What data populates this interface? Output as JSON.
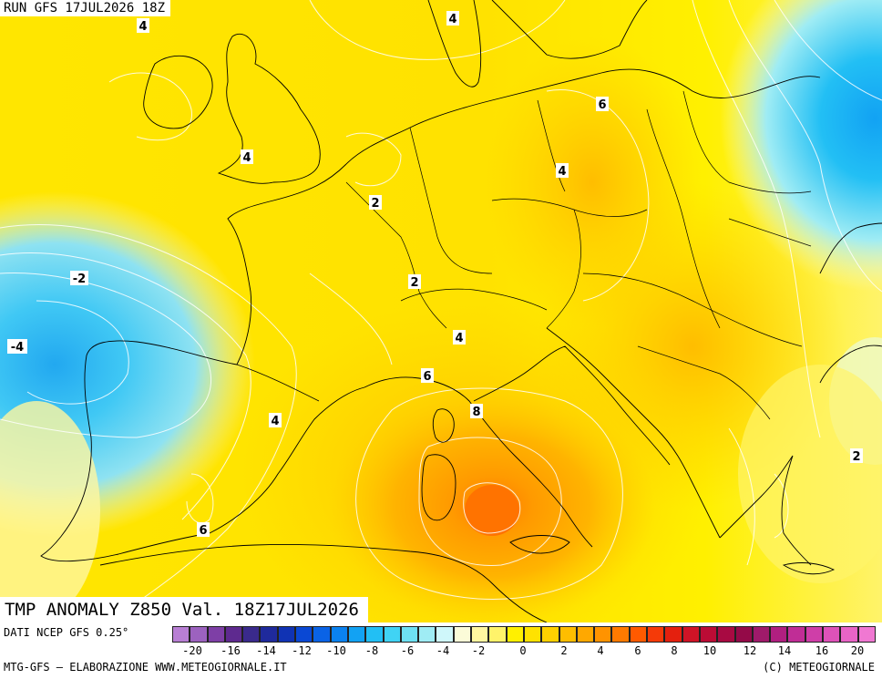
{
  "header": {
    "run_label": "RUN GFS 17JUL2026 18Z"
  },
  "map": {
    "title": "TMP ANOMALY Z850 Val. 18Z17JUL2026",
    "isotherm_labels": [
      "4",
      "4",
      "6",
      "4",
      "4",
      "2",
      "-2",
      "2",
      "-4",
      "4",
      "6",
      "8",
      "4",
      "6",
      "2"
    ]
  },
  "legend": {
    "source": "DATI NCEP GFS 0.25°",
    "tick_labels": [
      "-20",
      "-16",
      "-14",
      "-12",
      "-10",
      "-8",
      "-6",
      "-4",
      "-2",
      "0",
      "2",
      "4",
      "6",
      "8",
      "10",
      "12",
      "14",
      "16",
      "20"
    ],
    "colors": [
      "#b87fd4",
      "#9c62bf",
      "#7e3fa6",
      "#5e2a8f",
      "#3a2a8c",
      "#1f2a9c",
      "#1033b4",
      "#0a48d4",
      "#0a63e6",
      "#0b82ef",
      "#12a2f3",
      "#22bff4",
      "#40d3f4",
      "#6ee0f2",
      "#9fecf4",
      "#cff7fa",
      "#fbfbd8",
      "#fff6a0",
      "#fff36a",
      "#fff000",
      "#ffe200",
      "#ffd000",
      "#ffbd00",
      "#ffa800",
      "#ff9300",
      "#ff7a00",
      "#ff5a00",
      "#f53a08",
      "#e4200e",
      "#cf1426",
      "#bb0c35",
      "#a80a42",
      "#940a48",
      "#9f1a6a",
      "#b01f80",
      "#c02d96",
      "#cf3ea8",
      "#de52b8",
      "#e864c6",
      "#f078d2"
    ]
  },
  "footer": {
    "credit": "MTG-GFS – ELABORAZIONE WWW.METEOGIORNALE.IT",
    "copyright": "(C) METEOGIORNALE"
  }
}
